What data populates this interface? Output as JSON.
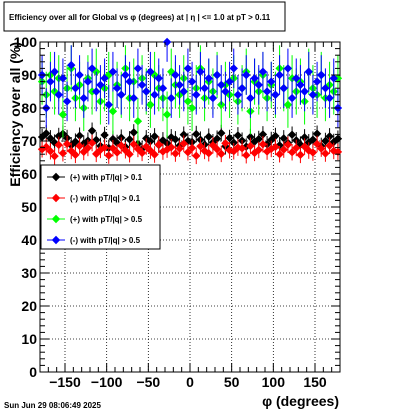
{
  "title": "Efficiency over all for Global vs φ (degrees) at |  η  | <= 1.0 at pT > 0.11",
  "timestamp": "Sun Jun 29 08:06:49 2025",
  "chart_data": {
    "type": "scatter",
    "xlabel": "φ (degrees)",
    "ylabel": "Efficiency over all (%)",
    "xlim": [
      -180,
      180
    ],
    "ylim": [
      0,
      100
    ],
    "x_ticks": [
      -150,
      -100,
      -50,
      0,
      50,
      100,
      150
    ],
    "x_tick_labels": [
      "−150",
      "−100",
      "−50",
      "0",
      "50",
      "100",
      "150"
    ],
    "y_ticks": [
      0,
      10,
      20,
      30,
      40,
      50,
      60,
      70,
      80,
      90,
      100
    ],
    "y_tick_labels": [
      "0",
      "10",
      "20",
      "30",
      "40",
      "50",
      "60",
      "70",
      "80",
      "90",
      "100"
    ],
    "grid": true,
    "legend_position": "left",
    "n_points": 72,
    "x_range": [
      -177.5,
      177.5
    ],
    "series": [
      {
        "name": "(+) with pT/|q| > 0.1",
        "color": "#000000",
        "err": 2.5,
        "values": [
          71.2,
          72.3,
          70.8,
          69.5,
          71.5,
          72.2,
          70.9,
          68.7,
          69.8,
          71.6,
          69.2,
          70.1,
          73.1,
          70.3,
          68.5,
          71.8,
          67.9,
          70.6,
          69.4,
          71.0,
          68.2,
          70.5,
          72.6,
          69.1,
          67.6,
          70.8,
          69.9,
          71.4,
          68.8,
          70.2,
          69.3,
          71.1,
          70.5,
          68.6,
          71.9,
          70.0,
          69.7,
          72.1,
          70.4,
          68.9,
          71.3,
          69.6,
          70.7,
          72.4,
          68.4,
          70.9,
          69.5,
          71.7,
          70.1,
          68.3,
          71.2,
          69.8,
          70.6,
          72.0,
          69.0,
          70.3,
          71.5,
          68.7,
          70.8,
          69.4,
          71.9,
          70.2,
          68.9,
          71.1,
          69.6,
          70.4,
          72.2,
          68.5,
          70.0,
          71.4,
          69.7,
          70.7
        ]
      },
      {
        "name": "(-) with pT/|q| > 0.1",
        "color": "#ff0000",
        "err": 2.5,
        "values": [
          67.5,
          68.2,
          66.9,
          65.4,
          68.8,
          66.3,
          69.1,
          67.0,
          65.8,
          68.5,
          66.7,
          67.9,
          69.4,
          66.1,
          67.3,
          68.0,
          65.6,
          67.8,
          66.5,
          68.6,
          67.2,
          66.0,
          69.0,
          67.6,
          66.4,
          68.3,
          67.1,
          65.9,
          68.9,
          66.8,
          67.4,
          68.1,
          66.2,
          67.7,
          69.2,
          66.6,
          67.9,
          65.5,
          68.4,
          67.0,
          66.3,
          68.7,
          67.5,
          66.1,
          69.3,
          67.2,
          66.9,
          68.0,
          67.8,
          65.7,
          68.5,
          66.4,
          67.3,
          69.0,
          66.8,
          67.6,
          68.2,
          66.0,
          67.4,
          68.9,
          66.6,
          67.9,
          65.8,
          68.3,
          67.1,
          66.5,
          69.1,
          67.7,
          66.2,
          68.6,
          67.0,
          66.7
        ]
      },
      {
        "name": "(+) with pT/|q| > 0.5",
        "color": "#00ff00",
        "err": 7.0,
        "values": [
          88.0,
          84.0,
          90.0,
          85.0,
          89.0,
          78.0,
          86.0,
          92.0,
          83.0,
          87.0,
          80.0,
          89.0,
          85.0,
          91.0,
          82.0,
          86.0,
          90.0,
          79.0,
          87.0,
          84.0,
          92.0,
          83.0,
          88.0,
          76.0,
          89.0,
          85.0,
          81.0,
          90.0,
          86.0,
          83.0,
          78.0,
          91.0,
          87.0,
          84.0,
          89.0,
          82.0,
          80.0,
          86.0,
          92.0,
          83.0,
          88.0,
          85.0,
          90.0,
          81.0,
          87.0,
          84.0,
          89.0,
          82.0,
          86.0,
          91.0,
          79.0,
          88.0,
          85.0,
          90.0,
          83.0,
          87.0,
          84.0,
          92.0,
          86.0,
          81.0,
          89.0,
          85.0,
          88.0,
          82.0,
          91.0,
          86.0,
          84.0,
          90.0,
          83.0,
          87.0,
          85.0,
          89.0
        ]
      },
      {
        "name": "(-) with pT/|q| > 0.5",
        "color": "#0000ff",
        "err": 6.0,
        "values": [
          90.0,
          80.0,
          88.0,
          91.0,
          84.0,
          89.0,
          82.0,
          93.0,
          86.0,
          90.0,
          83.0,
          88.0,
          92.0,
          85.0,
          87.0,
          89.0,
          81.0,
          91.0,
          86.0,
          84.0,
          90.0,
          88.0,
          83.0,
          92.0,
          87.0,
          85.0,
          91.0,
          84.0,
          89.0,
          86.0,
          100.0,
          83.0,
          90.0,
          87.0,
          85.0,
          92.0,
          88.0,
          84.0,
          91.0,
          86.0,
          89.0,
          83.0,
          90.0,
          87.0,
          85.0,
          88.0,
          92.0,
          84.0,
          86.0,
          90.0,
          83.0,
          89.0,
          87.0,
          91.0,
          85.0,
          88.0,
          84.0,
          90.0,
          86.0,
          92.0,
          83.0,
          89.0,
          87.0,
          85.0,
          91.0,
          84.0,
          88.0,
          90.0,
          86.0,
          83.0,
          89.0,
          80.0
        ]
      }
    ]
  }
}
